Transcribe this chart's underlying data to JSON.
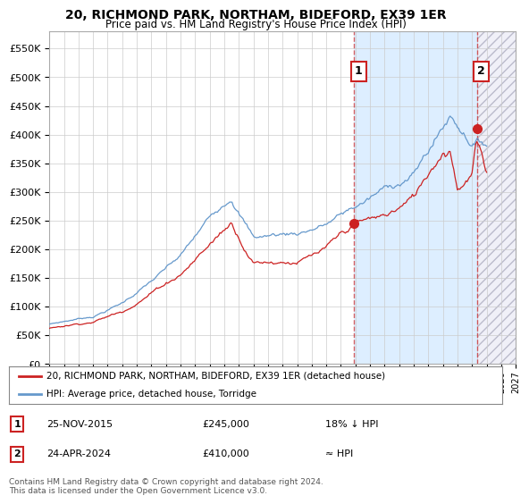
{
  "title": "20, RICHMOND PARK, NORTHAM, BIDEFORD, EX39 1ER",
  "subtitle": "Price paid vs. HM Land Registry's House Price Index (HPI)",
  "ylim": [
    0,
    580000
  ],
  "yticks": [
    0,
    50000,
    100000,
    150000,
    200000,
    250000,
    300000,
    350000,
    400000,
    450000,
    500000,
    550000
  ],
  "xlim_start": 1995.0,
  "xlim_end": 2027.0,
  "hpi_color": "#6699cc",
  "price_color": "#cc2222",
  "vline1_x": 2015.917,
  "vline2_x": 2024.333,
  "vline_color": "#cc2222",
  "marker1_x": 2015.917,
  "marker1_y": 245000,
  "marker2_x": 2024.333,
  "marker2_y": 410000,
  "shade_fill_color": "#ddeeff",
  "hatch_color": "#ccccdd",
  "legend_label1": "20, RICHMOND PARK, NORTHAM, BIDEFORD, EX39 1ER (detached house)",
  "legend_label2": "HPI: Average price, detached house, Torridge",
  "annotation1_num": "1",
  "annotation1_date": "25-NOV-2015",
  "annotation1_price": "£245,000",
  "annotation1_hpi": "18% ↓ HPI",
  "annotation2_num": "2",
  "annotation2_date": "24-APR-2024",
  "annotation2_price": "£410,000",
  "annotation2_hpi": "≈ HPI",
  "footer": "Contains HM Land Registry data © Crown copyright and database right 2024.\nThis data is licensed under the Open Government Licence v3.0.",
  "background_color": "#ffffff",
  "grid_color": "#cccccc"
}
